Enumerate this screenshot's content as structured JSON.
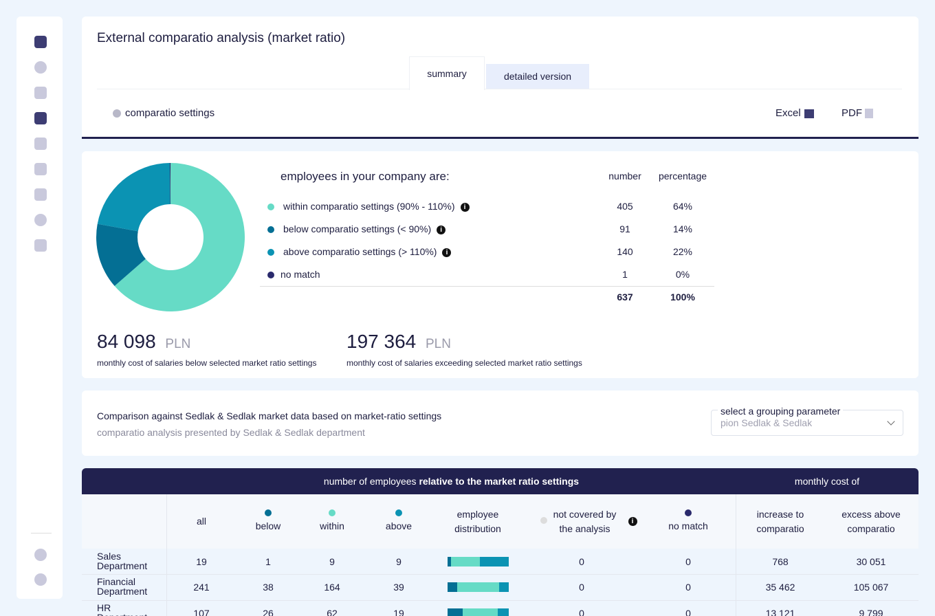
{
  "header": {
    "title": "External comparatio analysis (market ratio)",
    "tabs": [
      "summary",
      "detailed version"
    ],
    "settings": "comparatio settings",
    "exports": [
      "Excel",
      "PDF"
    ]
  },
  "summary": {
    "heading": "employees in your company are:",
    "columns": [
      "number",
      "percentage"
    ],
    "rows": [
      {
        "label": "within comparatio settings (90% - 110%)",
        "color": "#66dbc6",
        "number": 405,
        "percentage": "64%"
      },
      {
        "label": "below comparatio settings (< 90%)",
        "color": "#046f94",
        "number": 91,
        "percentage": "14%"
      },
      {
        "label": "above comparatio settings (> 110%)",
        "color": "#0b93b3",
        "number": 140,
        "percentage": "22%"
      },
      {
        "label": "no match",
        "color": "#2a2a6c",
        "number": 1,
        "percentage": "0%"
      }
    ],
    "total": {
      "number": 637,
      "percentage": "100%"
    }
  },
  "costs": [
    {
      "value": "84 098",
      "unit": "PLN",
      "label": "monthly cost of salaries below selected market ratio settings"
    },
    {
      "value": "197 364",
      "unit": "PLN",
      "label": "monthly cost of salaries exceeding selected market ratio settings"
    }
  ],
  "comparison": {
    "title": "Comparison against Sedlak & Sedlak market data based on market-ratio settings",
    "subtitle": "comparatio analysis presented by Sedlak & Sedlak department",
    "select_label": "select a grouping parameter",
    "select_value": "pion Sedlak & Sedlak"
  },
  "table": {
    "group_headers": [
      {
        "text": "number of employees ",
        "bold": "relative to the market ratio settings"
      },
      {
        "text": "monthly cost of"
      }
    ],
    "columns": [
      {
        "label": "all"
      },
      {
        "label": "below",
        "color": "#046f94"
      },
      {
        "label": "within",
        "color": "#66dbc6"
      },
      {
        "label": "above",
        "color": "#0b93b3"
      },
      {
        "label": "employee distribution"
      },
      {
        "label": "not covered by the analysis",
        "color": "#dddddd"
      },
      {
        "label": "no match",
        "color": "#2a2a6c"
      },
      {
        "label": "increase to comparatio"
      },
      {
        "label": "excess above comparatio"
      }
    ],
    "rows": [
      {
        "name": "Sales Department",
        "cells": [
          19,
          1,
          9,
          9,
          0,
          0,
          "768",
          "30 051"
        ]
      },
      {
        "name": "Financial Department",
        "cells": [
          241,
          38,
          164,
          39,
          0,
          0,
          "35 462",
          "105 067"
        ]
      },
      {
        "name": "HR Department",
        "cells": [
          107,
          26,
          62,
          19,
          0,
          0,
          "13 121",
          "9 799"
        ]
      }
    ]
  }
}
